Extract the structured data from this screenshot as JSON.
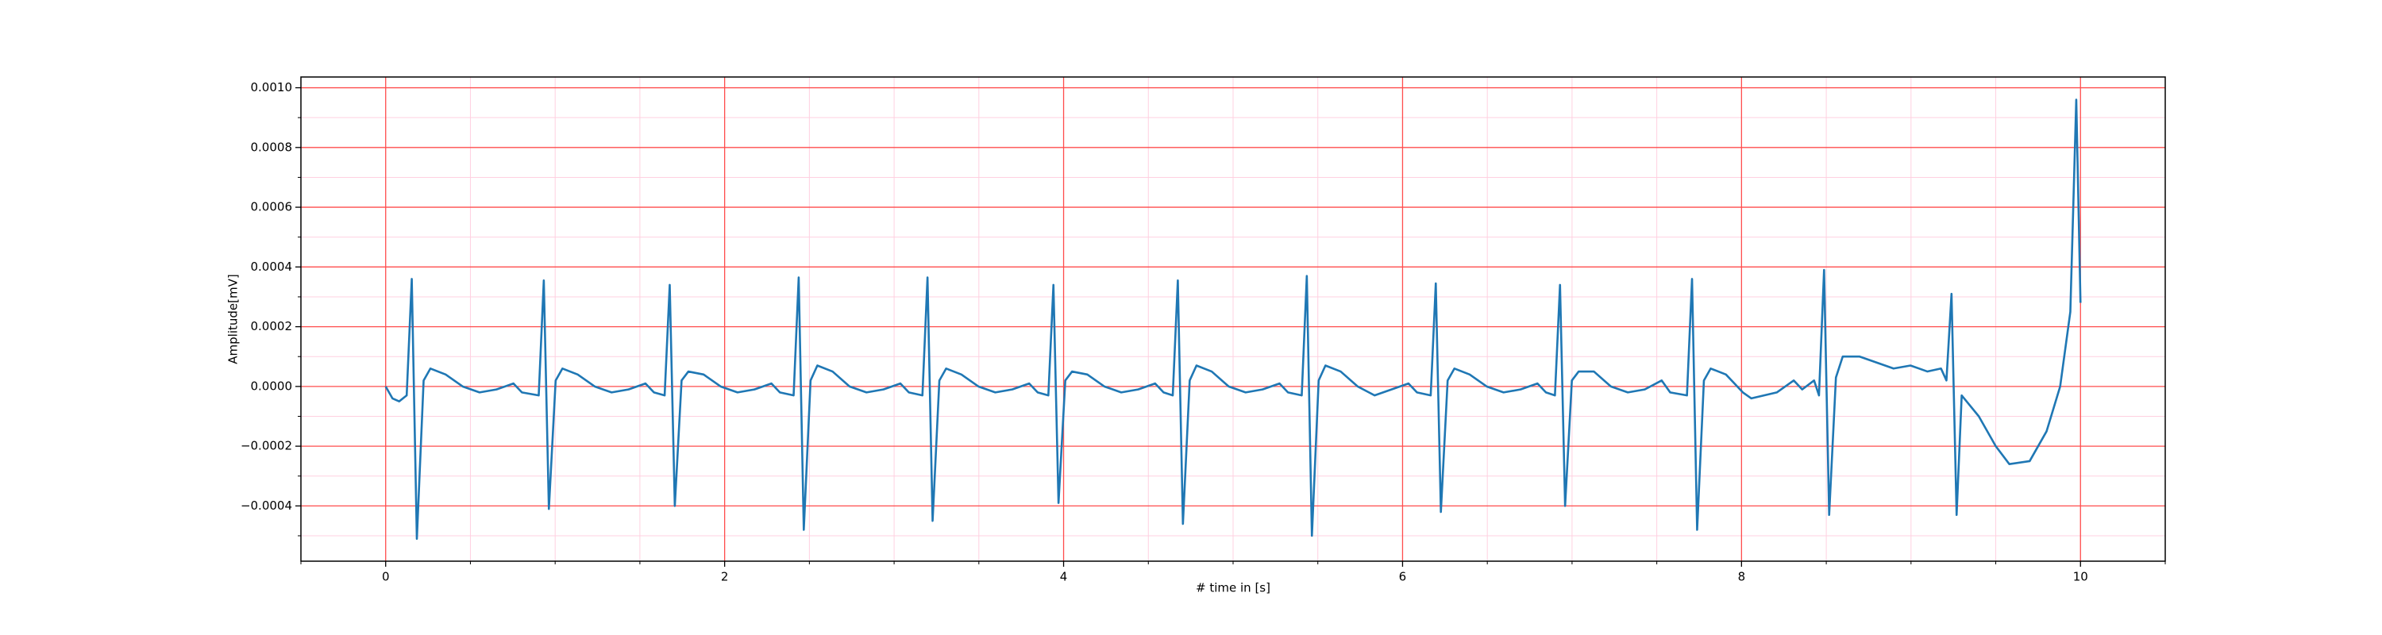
{
  "chart_data": {
    "type": "line",
    "xlabel": "# time in [s]",
    "ylabel": "Amplitude[mV]",
    "color": "#1f77b4",
    "grid": true,
    "grid_color": "#ff4d4d",
    "minor_grid_color": "#ffd0e0",
    "xlim": [
      -0.5,
      10.5
    ],
    "ylim": [
      -0.000585,
      0.001036
    ],
    "xticks": [
      0,
      2,
      4,
      6,
      8,
      10
    ],
    "yticks": [
      {
        "value": -0.0004,
        "label": "−0.0004"
      },
      {
        "value": -0.0002,
        "label": "−0.0002"
      },
      {
        "value": 0,
        "label": "0.0000"
      },
      {
        "value": 0.0002,
        "label": "0.0002"
      },
      {
        "value": 0.0004,
        "label": "0.0004"
      },
      {
        "value": 0.0006,
        "label": "0.0006"
      },
      {
        "value": 0.0008,
        "label": "0.0008"
      },
      {
        "value": 0.001,
        "label": "0.0010"
      }
    ],
    "xminorticks": [
      -0.5,
      0.5,
      1,
      1.5,
      2.5,
      3,
      3.5,
      4.5,
      5,
      5.5,
      6.5,
      7,
      7.5,
      8.5,
      9,
      9.5,
      10.5
    ],
    "yminorticks": [
      -0.0005,
      -0.0003,
      -0.0001,
      0.0001,
      0.0003,
      0.0005,
      0.0007,
      0.0009
    ],
    "x": [
      0,
      0.04,
      0.08,
      0.124,
      0.154,
      0.184,
      0.224,
      0.264,
      0.354,
      0.454,
      0.554,
      0.654,
      0.754,
      0.804,
      0.903,
      0.933,
      0.963,
      1.003,
      1.043,
      1.133,
      1.233,
      1.333,
      1.433,
      1.533,
      1.583,
      1.646,
      1.676,
      1.706,
      1.746,
      1.786,
      1.876,
      1.976,
      2.076,
      2.176,
      2.276,
      2.326,
      2.407,
      2.437,
      2.467,
      2.507,
      2.547,
      2.637,
      2.737,
      2.837,
      2.937,
      3.037,
      3.087,
      3.167,
      3.197,
      3.227,
      3.267,
      3.307,
      3.397,
      3.497,
      3.597,
      3.697,
      3.797,
      3.847,
      3.91,
      3.94,
      3.97,
      4.01,
      4.05,
      4.14,
      4.24,
      4.34,
      4.44,
      4.54,
      4.59,
      4.644,
      4.674,
      4.704,
      4.744,
      4.784,
      4.874,
      4.974,
      5.074,
      5.174,
      5.274,
      5.324,
      5.405,
      5.435,
      5.465,
      5.505,
      5.545,
      5.635,
      5.735,
      5.835,
      5.935,
      6.035,
      6.085,
      6.166,
      6.196,
      6.226,
      6.266,
      6.306,
      6.396,
      6.496,
      6.596,
      6.696,
      6.796,
      6.846,
      6.899,
      6.929,
      6.959,
      6.999,
      7.039,
      7.129,
      7.229,
      7.329,
      7.429,
      7.529,
      7.579,
      7.678,
      7.708,
      7.738,
      7.778,
      7.818,
      7.908,
      8.008,
      8.058,
      8.208,
      8.308,
      8.358,
      8.428,
      8.457,
      8.487,
      8.517,
      8.557,
      8.597,
      8.697,
      8.797,
      8.897,
      8.997,
      9.097,
      9.177,
      9.209,
      9.239,
      9.269,
      9.299,
      9.4,
      9.5,
      9.58,
      9.7,
      9.8,
      9.88,
      9.94,
      9.975,
      10.0
    ],
    "values": [
      0,
      -4e-05,
      -5e-05,
      -3e-05,
      0.00036,
      -0.00051,
      2e-05,
      6e-05,
      4e-05,
      0,
      -2e-05,
      -1e-05,
      1e-05,
      -2e-05,
      -3e-05,
      0.000355,
      -0.00041,
      2e-05,
      6e-05,
      4e-05,
      0,
      -2e-05,
      -1e-05,
      1e-05,
      -2e-05,
      -3e-05,
      0.00034,
      -0.0004,
      2e-05,
      5e-05,
      4e-05,
      0,
      -2e-05,
      -1e-05,
      1e-05,
      -2e-05,
      -3e-05,
      0.000365,
      -0.00048,
      2e-05,
      7e-05,
      5e-05,
      0,
      -2e-05,
      -1e-05,
      1e-05,
      -2e-05,
      -3e-05,
      0.000365,
      -0.00045,
      2e-05,
      6e-05,
      4e-05,
      0,
      -2e-05,
      -1e-05,
      1e-05,
      -2e-05,
      -3e-05,
      0.00034,
      -0.00039,
      2e-05,
      5e-05,
      4e-05,
      0,
      -2e-05,
      -1e-05,
      1e-05,
      -2e-05,
      -3e-05,
      0.000355,
      -0.00046,
      2e-05,
      7e-05,
      5e-05,
      0,
      -2e-05,
      -1e-05,
      1e-05,
      -2e-05,
      -3e-05,
      0.00037,
      -0.0005,
      2e-05,
      7e-05,
      5e-05,
      0,
      -3e-05,
      -1e-05,
      1e-05,
      -2e-05,
      -3e-05,
      0.000345,
      -0.00042,
      2e-05,
      6e-05,
      4e-05,
      0,
      -2e-05,
      -1e-05,
      1e-05,
      -2e-05,
      -3e-05,
      0.00034,
      -0.0004,
      2e-05,
      5e-05,
      5e-05,
      0,
      -2e-05,
      -1e-05,
      2e-05,
      -2e-05,
      -3e-05,
      0.00036,
      -0.00048,
      2e-05,
      6e-05,
      4e-05,
      -2e-05,
      -4e-05,
      -2e-05,
      2e-05,
      -1e-05,
      2e-05,
      -3e-05,
      0.00039,
      -0.00043,
      3e-05,
      0.0001,
      0.0001,
      8e-05,
      6e-05,
      7e-05,
      5e-05,
      6e-05,
      2e-05,
      0.00031,
      -0.00043,
      -3e-05,
      -0.0001,
      -0.0002,
      -0.00026,
      -0.00025,
      -0.00015,
      0,
      0.00025,
      0.00096,
      0.00028
    ]
  }
}
